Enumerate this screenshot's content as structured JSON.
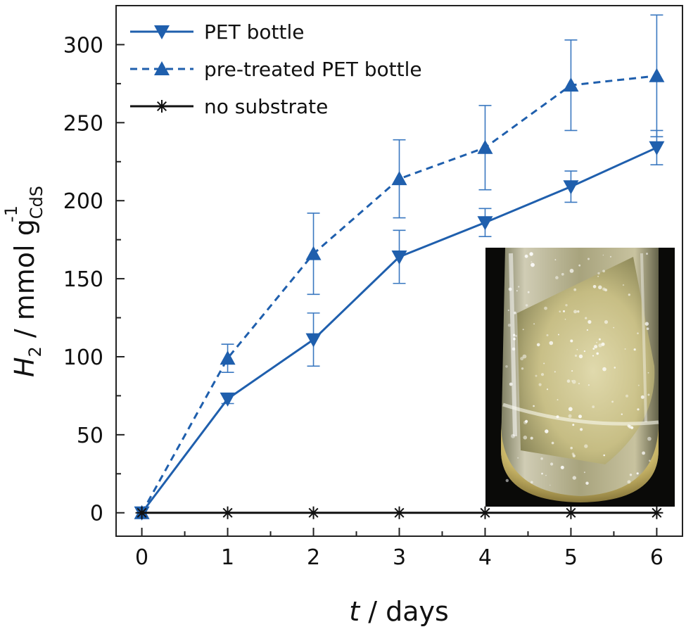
{
  "chart_data": {
    "type": "line",
    "xlabel_var": "t",
    "xlabel_rest": " / days",
    "ylabel_var": "H",
    "ylabel_var_sub": "2",
    "ylabel_mid": " / mmol g",
    "ylabel_sub": "CdS",
    "ylabel_sup": "-1",
    "xlim": [
      -0.3,
      6.3
    ],
    "ylim": [
      -15,
      325
    ],
    "x_ticks": [
      0,
      1,
      2,
      3,
      4,
      5,
      6
    ],
    "y_ticks": [
      0,
      50,
      100,
      150,
      200,
      250,
      300
    ],
    "grid": false,
    "legend_position": "top-left",
    "inset": "photo of a glass vial containing liquid with bubbles and PET pieces",
    "series": [
      {
        "name": "PET bottle",
        "color": "#1f5fad",
        "line_style": "solid",
        "marker": "triangle-down",
        "x": [
          0,
          1,
          2,
          3,
          4,
          5,
          6
        ],
        "y": [
          0,
          73,
          111,
          164,
          186,
          209,
          234
        ],
        "yerr": [
          0,
          3,
          17,
          17,
          9,
          10,
          11
        ]
      },
      {
        "name": "pre-treated PET bottle",
        "color": "#1f5fad",
        "line_style": "dashed",
        "marker": "triangle-up",
        "x": [
          0,
          1,
          2,
          3,
          4,
          5,
          6
        ],
        "y": [
          0,
          99,
          166,
          214,
          234,
          274,
          280
        ],
        "yerr": [
          0,
          9,
          26,
          25,
          27,
          29,
          39
        ]
      },
      {
        "name": "no substrate",
        "color": "#111111",
        "line_style": "solid",
        "marker": "asterisk",
        "x": [
          0,
          1,
          2,
          3,
          4,
          5,
          6
        ],
        "y": [
          0,
          0,
          0,
          0,
          0,
          0,
          0
        ],
        "yerr": [
          0,
          0,
          0,
          0,
          0,
          0,
          0
        ]
      }
    ]
  }
}
